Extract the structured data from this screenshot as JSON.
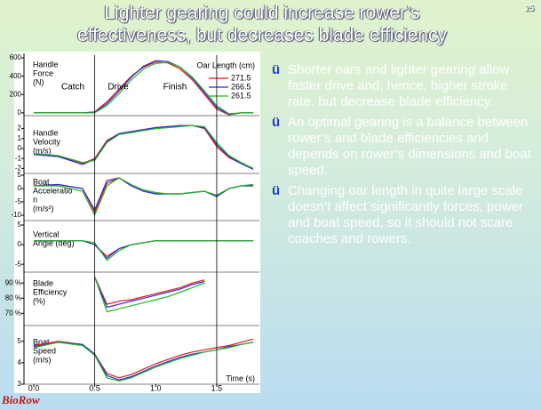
{
  "slide": {
    "title": [
      "Lighter gearing could increase rower’s",
      "effectiveness, but decreases blade efficiency"
    ],
    "page_number": "25",
    "bullet_marker": "ü",
    "bullets": [
      "Shorter oars and lighter gearing allow faster drive and, hence, higher stroke rate, but decrease blade efficiency.",
      "An optimal gearing is a balance between rower’s and blade efficiencies and depends on rower’s dimensions and boat speed.",
      "Changing oar length in quite large scale doesn’t affect significantly forces, power and boat speed, so it should not scare coaches and rowers."
    ],
    "logo": "BioRow"
  },
  "chart_data": [
    {
      "type": "line",
      "label": [
        "Handle",
        "Force",
        "(N)"
      ],
      "annotations": [
        "Catch",
        "Drive",
        "Finish"
      ],
      "legend_title": "Oar Length (cm)",
      "x": [
        0,
        0.2,
        0.4,
        0.5,
        0.6,
        0.7,
        0.8,
        0.9,
        1.0,
        1.1,
        1.2,
        1.3,
        1.4,
        1.5,
        1.6,
        1.7,
        1.8
      ],
      "series": [
        {
          "name": "271.5",
          "color": "#e8141b",
          "values": [
            0,
            0,
            0,
            10,
            120,
            260,
            400,
            500,
            555,
            545,
            480,
            360,
            200,
            40,
            -20,
            0,
            0
          ]
        },
        {
          "name": "266.5",
          "color": "#2828e0",
          "values": [
            0,
            0,
            0,
            5,
            100,
            240,
            390,
            510,
            570,
            560,
            500,
            380,
            220,
            60,
            -15,
            0,
            0
          ]
        },
        {
          "name": "261.5",
          "color": "#22b822",
          "values": [
            0,
            0,
            0,
            0,
            80,
            210,
            360,
            480,
            540,
            550,
            500,
            390,
            240,
            80,
            -10,
            0,
            0
          ]
        }
      ],
      "xlim": [
        -0.08,
        1.85
      ],
      "ylim": [
        -30,
        630
      ],
      "yticks": [
        0,
        200,
        400,
        600
      ]
    },
    {
      "type": "line",
      "label": [
        "Handle",
        "Velocity",
        "(m/s)"
      ],
      "x": [
        0,
        0.2,
        0.4,
        0.5,
        0.6,
        0.7,
        0.8,
        0.9,
        1.0,
        1.1,
        1.2,
        1.3,
        1.4,
        1.5,
        1.6,
        1.7,
        1.8
      ],
      "series": [
        {
          "name": "271.5",
          "color": "#e8141b",
          "values": [
            -0.6,
            -0.8,
            -1.5,
            -1.0,
            0.8,
            1.5,
            1.7,
            1.9,
            2.1,
            2.2,
            2.3,
            2.3,
            2.0,
            0.2,
            -0.9,
            -1.5,
            -2.0
          ]
        },
        {
          "name": "266.5",
          "color": "#2828e0",
          "values": [
            -0.6,
            -0.8,
            -1.6,
            -1.1,
            0.7,
            1.5,
            1.7,
            1.9,
            2.1,
            2.2,
            2.3,
            2.3,
            2.1,
            0.4,
            -0.8,
            -1.5,
            -2.1
          ]
        },
        {
          "name": "261.5",
          "color": "#22b822",
          "values": [
            -0.5,
            -0.7,
            -1.4,
            -1.2,
            0.6,
            1.4,
            1.6,
            1.8,
            2.0,
            2.1,
            2.2,
            2.3,
            2.2,
            0.6,
            -0.7,
            -1.4,
            -2.0
          ]
        }
      ],
      "xlim": [
        -0.08,
        1.85
      ],
      "ylim": [
        -2.5,
        2.5
      ],
      "yticks": [
        2,
        1,
        0,
        -1,
        -2
      ]
    },
    {
      "type": "line",
      "label": [
        "Boat",
        "Acceleratio",
        "n",
        "(m/s²)"
      ],
      "x": [
        0,
        0.2,
        0.4,
        0.5,
        0.6,
        0.7,
        0.8,
        0.9,
        1.0,
        1.1,
        1.2,
        1.3,
        1.4,
        1.5,
        1.6,
        1.7,
        1.8
      ],
      "series": [
        {
          "name": "271.5",
          "color": "#e8141b",
          "values": [
            1,
            1.5,
            0,
            -9,
            2,
            4,
            1,
            -1,
            -2,
            -2,
            -2,
            -1.5,
            -1,
            -3,
            0,
            1,
            1.5
          ]
        },
        {
          "name": "266.5",
          "color": "#2828e0",
          "values": [
            1,
            1.5,
            0,
            -8,
            3,
            4,
            1,
            -1,
            -2,
            -2,
            -2,
            -1.5,
            -1,
            -3,
            0,
            1,
            1
          ]
        },
        {
          "name": "261.5",
          "color": "#22b822",
          "values": [
            1,
            1,
            -1,
            -10,
            1,
            4,
            1.5,
            -0.5,
            -1.5,
            -2,
            -2,
            -1.5,
            -1,
            -2.5,
            0,
            1,
            1.5
          ]
        }
      ],
      "xlim": [
        -0.08,
        1.85
      ],
      "ylim": [
        -12,
        6
      ],
      "yticks": [
        5,
        0,
        -5,
        -10
      ]
    },
    {
      "type": "line",
      "label": [
        "Vertical",
        "Angle (deg)"
      ],
      "x": [
        0,
        0.2,
        0.4,
        0.5,
        0.6,
        0.7,
        0.8,
        0.9,
        1.0,
        1.1,
        1.2,
        1.3,
        1.4,
        1.5,
        1.6,
        1.7,
        1.8
      ],
      "series": [
        {
          "name": "271.5",
          "color": "#e8141b",
          "values": [
            1,
            1,
            1,
            0,
            -3,
            -1,
            0,
            0.5,
            1,
            1,
            1,
            1,
            1,
            1,
            1,
            1,
            1
          ]
        },
        {
          "name": "266.5",
          "color": "#2828e0",
          "values": [
            1,
            1,
            1,
            0,
            -3.5,
            -1,
            0,
            0.5,
            1,
            1,
            1,
            1,
            1,
            1,
            1,
            1,
            1
          ]
        },
        {
          "name": "261.5",
          "color": "#22b822",
          "values": [
            1,
            1,
            1,
            0.5,
            -4,
            -1.5,
            0,
            0.5,
            1,
            1,
            1,
            1,
            1,
            1,
            1,
            1,
            1
          ]
        }
      ],
      "xlim": [
        -0.08,
        1.85
      ],
      "ylim": [
        -7,
        5
      ],
      "yticks": [
        5,
        0,
        -5
      ]
    },
    {
      "type": "line",
      "label": [
        "Blade",
        "Efficiency",
        "(%)"
      ],
      "x": [
        0,
        0.2,
        0.4,
        0.5,
        0.6,
        0.7,
        0.8,
        0.9,
        1.0,
        1.1,
        1.2,
        1.3,
        1.4,
        1.5,
        1.6,
        1.7,
        1.8
      ],
      "series": [
        {
          "name": "271.5",
          "color": "#e8141b",
          "values": [
            null,
            null,
            null,
            94,
            76,
            78,
            79,
            81,
            83,
            85,
            87,
            90,
            92,
            null,
            null,
            null,
            null
          ]
        },
        {
          "name": "266.5",
          "color": "#2828e0",
          "values": [
            null,
            null,
            null,
            94,
            74,
            76,
            78,
            80,
            82,
            84,
            86,
            89,
            91,
            null,
            null,
            null,
            null
          ]
        },
        {
          "name": "261.5",
          "color": "#22b822",
          "values": [
            null,
            null,
            null,
            94,
            71,
            73,
            75,
            77,
            79,
            81,
            84,
            87,
            90,
            null,
            null,
            null,
            null
          ]
        }
      ],
      "xlim": [
        -0.08,
        1.85
      ],
      "ylim": [
        62,
        96
      ],
      "yticks": [
        {
          "value": 90,
          "label": "90 %"
        },
        {
          "value": 80,
          "label": "80 %"
        },
        {
          "value": 70,
          "label": "70 %"
        }
      ]
    },
    {
      "type": "line",
      "label": [
        "Boat",
        "Speed",
        "(m/s)"
      ],
      "x_label": "Time (s)",
      "x": [
        0,
        0.2,
        0.4,
        0.5,
        0.6,
        0.7,
        0.8,
        0.9,
        1.0,
        1.1,
        1.2,
        1.3,
        1.4,
        1.5,
        1.6,
        1.7,
        1.8
      ],
      "series": [
        {
          "name": "271.5",
          "color": "#e8141b",
          "values": [
            4.8,
            5.0,
            4.85,
            4.4,
            3.5,
            3.3,
            3.45,
            3.7,
            3.95,
            4.15,
            4.35,
            4.5,
            4.6,
            4.7,
            4.8,
            4.95,
            5.1
          ]
        },
        {
          "name": "266.5",
          "color": "#2828e0",
          "values": [
            4.75,
            4.95,
            4.85,
            4.4,
            3.4,
            3.2,
            3.35,
            3.6,
            3.85,
            4.05,
            4.25,
            4.4,
            4.5,
            4.6,
            4.75,
            4.85,
            4.95
          ]
        },
        {
          "name": "261.5",
          "color": "#22b822",
          "values": [
            4.7,
            4.95,
            4.8,
            4.35,
            3.3,
            3.15,
            3.3,
            3.55,
            3.8,
            4.0,
            4.2,
            4.35,
            4.5,
            4.6,
            4.7,
            4.85,
            4.95
          ]
        }
      ],
      "xlim": [
        -0.08,
        1.85
      ],
      "ylim": [
        3,
        5.4
      ],
      "yticks": [
        5,
        4,
        3
      ],
      "xticks": [
        {
          "value": 0,
          "label": "0.0"
        },
        0.5,
        {
          "value": 1,
          "label": "1.0"
        },
        1.5
      ]
    }
  ]
}
